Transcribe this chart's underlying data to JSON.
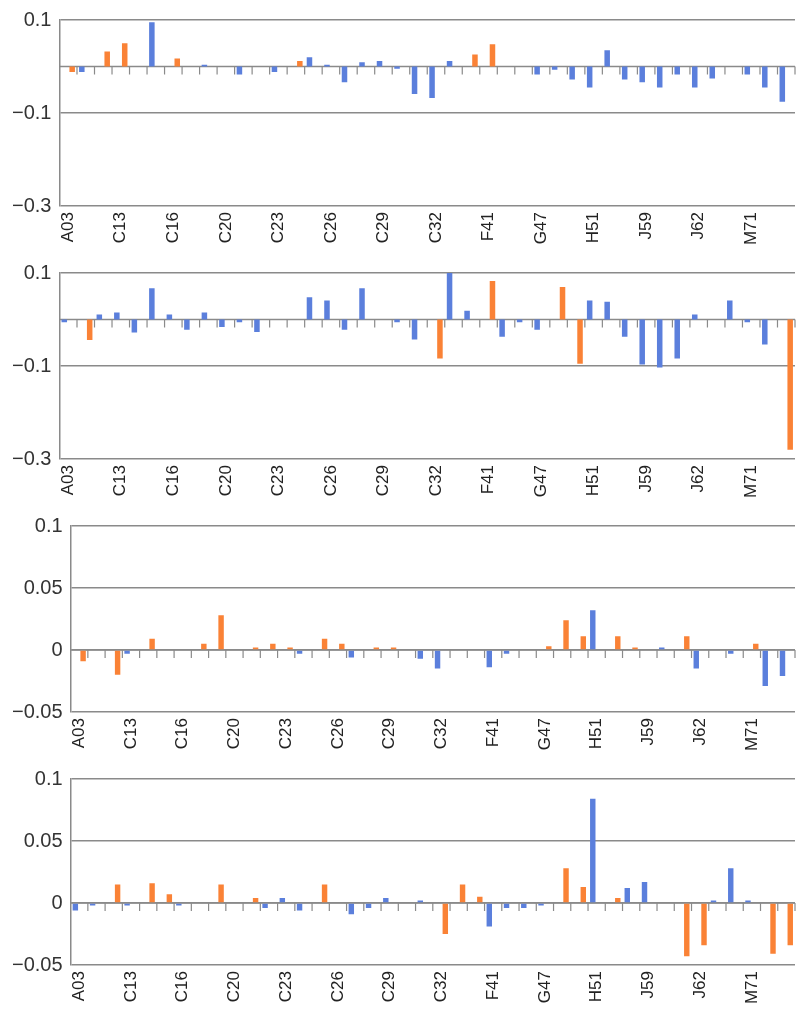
{
  "chart_data": [
    {
      "type": "bar",
      "categories": [
        "A03",
        null,
        null,
        "C13",
        null,
        null,
        "C16",
        null,
        null,
        "C20",
        null,
        null,
        "C23",
        null,
        null,
        "C26",
        null,
        null,
        "C29",
        null,
        null,
        "C32",
        null,
        null,
        "F41",
        null,
        null,
        "G47",
        null,
        null,
        "H51",
        null,
        null,
        "J59",
        null,
        null,
        "J62",
        null,
        null,
        "M71",
        null,
        null
      ],
      "series": [
        {
          "color": "#5b7fdc",
          "values": [
            null,
            -0.012,
            null,
            null,
            null,
            0.095,
            null,
            null,
            0.004,
            null,
            -0.017,
            null,
            -0.012,
            null,
            0.02,
            0.004,
            -0.034,
            0.009,
            0.012,
            -0.005,
            -0.059,
            -0.068,
            0.012,
            null,
            null,
            null,
            null,
            -0.017,
            -0.007,
            -0.028,
            -0.045,
            0.035,
            -0.028,
            -0.034,
            -0.045,
            -0.017,
            -0.045,
            -0.026,
            null,
            -0.017,
            -0.045,
            -0.076
          ]
        },
        {
          "color": "#fa8236",
          "values": [
            -0.012,
            null,
            0.032,
            0.05,
            null,
            null,
            0.017,
            null,
            null,
            null,
            null,
            null,
            null,
            0.012,
            null,
            null,
            null,
            null,
            null,
            null,
            null,
            null,
            null,
            0.026,
            0.048,
            null,
            null,
            null,
            null,
            null,
            null,
            null,
            null,
            null,
            null,
            null,
            null,
            null,
            null,
            null,
            null,
            null
          ]
        }
      ],
      "ylim": [
        -0.3,
        0.1
      ],
      "yticks": [
        -0.3,
        -0.1,
        0.1
      ],
      "grid": "y"
    },
    {
      "type": "bar",
      "categories": [
        "A03",
        null,
        null,
        "C13",
        null,
        null,
        "C16",
        null,
        null,
        "C20",
        null,
        null,
        "C23",
        null,
        null,
        "C26",
        null,
        null,
        "C29",
        null,
        null,
        "C32",
        null,
        null,
        "F41",
        null,
        null,
        "G47",
        null,
        null,
        "H51",
        null,
        null,
        "J59",
        null,
        null,
        "J62",
        null,
        null,
        "M71",
        null,
        null
      ],
      "series": [
        {
          "color": "#5b7fdc",
          "values": [
            -0.006,
            null,
            0.011,
            0.015,
            -0.028,
            0.067,
            0.011,
            -0.022,
            0.015,
            -0.016,
            -0.006,
            -0.027,
            null,
            null,
            0.048,
            0.041,
            -0.022,
            0.067,
            null,
            -0.006,
            -0.043,
            null,
            0.1,
            0.019,
            null,
            -0.037,
            -0.006,
            -0.022,
            null,
            null,
            0.041,
            0.038,
            -0.037,
            -0.097,
            -0.103,
            -0.084,
            0.011,
            null,
            0.041,
            -0.006,
            -0.054,
            null
          ]
        },
        {
          "color": "#fa8236",
          "values": [
            null,
            -0.044,
            null,
            null,
            null,
            null,
            null,
            null,
            null,
            null,
            null,
            null,
            null,
            null,
            null,
            null,
            null,
            null,
            null,
            null,
            null,
            -0.084,
            null,
            null,
            0.083,
            null,
            null,
            null,
            0.07,
            -0.095,
            null,
            null,
            null,
            null,
            null,
            null,
            null,
            null,
            null,
            null,
            null,
            -0.28
          ]
        }
      ],
      "ylim": [
        -0.3,
        0.1
      ],
      "yticks": [
        -0.3,
        -0.1,
        0.1
      ],
      "grid": "y"
    },
    {
      "type": "bar",
      "categories": [
        "A03",
        null,
        null,
        "C13",
        null,
        null,
        "C16",
        null,
        null,
        "C20",
        null,
        null,
        "C23",
        null,
        null,
        "C26",
        null,
        null,
        "C29",
        null,
        null,
        "C32",
        null,
        null,
        "F41",
        null,
        null,
        "G47",
        null,
        null,
        "H51",
        null,
        null,
        "J59",
        null,
        null,
        "J62",
        null,
        null,
        "M71",
        null,
        null
      ],
      "series": [
        {
          "color": "#5b7fdc",
          "values": [
            null,
            null,
            null,
            -0.003,
            null,
            null,
            null,
            null,
            null,
            null,
            null,
            null,
            null,
            -0.003,
            null,
            null,
            -0.006,
            null,
            null,
            null,
            -0.007,
            -0.015,
            null,
            null,
            -0.014,
            -0.003,
            null,
            null,
            null,
            null,
            0.032,
            null,
            null,
            null,
            0.002,
            null,
            -0.015,
            null,
            -0.003,
            null,
            -0.029,
            -0.021
          ]
        },
        {
          "color": "#fa8236",
          "values": [
            -0.009,
            null,
            -0.02,
            null,
            0.009,
            null,
            null,
            0.005,
            0.028,
            null,
            0.002,
            0.005,
            0.002,
            null,
            0.009,
            0.005,
            null,
            0.002,
            0.002,
            null,
            null,
            null,
            null,
            null,
            null,
            null,
            null,
            0.003,
            0.024,
            0.011,
            null,
            0.011,
            0.002,
            null,
            null,
            0.011,
            null,
            null,
            null,
            0.005,
            null,
            null
          ]
        }
      ],
      "ylim": [
        -0.05,
        0.1
      ],
      "yticks": [
        -0.05,
        0,
        0.05,
        0.1
      ],
      "grid": "y"
    },
    {
      "type": "bar",
      "categories": [
        "A03",
        null,
        null,
        "C13",
        null,
        null,
        "C16",
        null,
        null,
        "C20",
        null,
        null,
        "C23",
        null,
        null,
        "C26",
        null,
        null,
        "C29",
        null,
        null,
        "C32",
        null,
        null,
        "F41",
        null,
        null,
        "G47",
        null,
        null,
        "H51",
        null,
        null,
        "J59",
        null,
        null,
        "J62",
        null,
        null,
        "M71",
        null,
        null
      ],
      "series": [
        {
          "color": "#5b7fdc",
          "values": [
            -0.006,
            -0.002,
            null,
            -0.002,
            null,
            null,
            -0.002,
            null,
            null,
            null,
            null,
            -0.004,
            0.004,
            -0.006,
            null,
            null,
            -0.009,
            -0.004,
            0.004,
            null,
            0.002,
            null,
            null,
            null,
            -0.019,
            -0.004,
            -0.004,
            -0.002,
            null,
            null,
            0.084,
            null,
            0.012,
            0.017,
            null,
            null,
            null,
            0.002,
            0.028,
            0.002,
            null,
            null
          ]
        },
        {
          "color": "#fa8236",
          "values": [
            null,
            null,
            0.015,
            null,
            0.016,
            0.007,
            null,
            null,
            0.015,
            null,
            0.004,
            null,
            null,
            null,
            0.015,
            null,
            null,
            null,
            null,
            null,
            null,
            -0.025,
            0.015,
            0.005,
            null,
            null,
            null,
            null,
            0.028,
            0.013,
            null,
            0.004,
            null,
            null,
            null,
            -0.043,
            -0.034,
            null,
            null,
            null,
            -0.041,
            -0.034
          ]
        }
      ],
      "ylim": [
        -0.05,
        0.1
      ],
      "yticks": [
        -0.05,
        0,
        0.05,
        0.1
      ],
      "grid": "y"
    }
  ]
}
